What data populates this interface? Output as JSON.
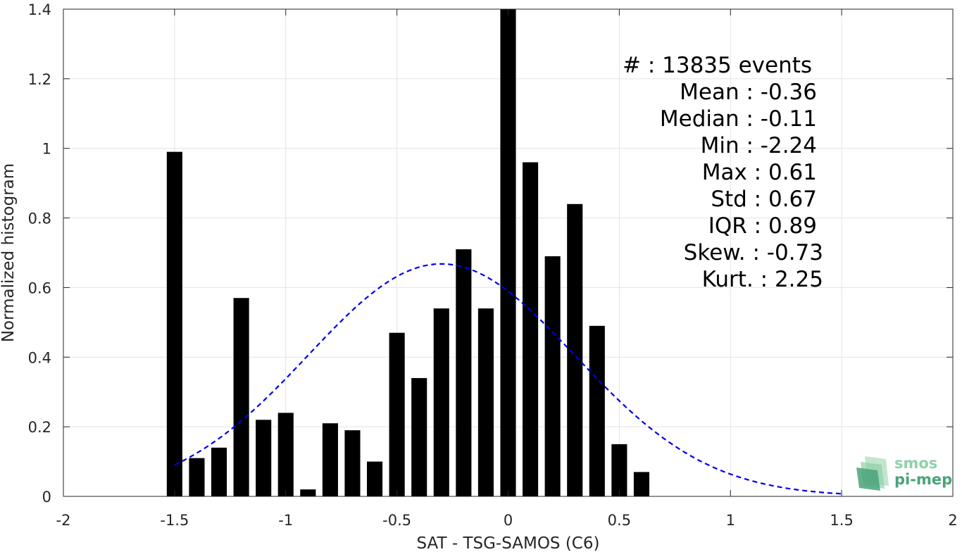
{
  "chart_data": {
    "type": "bar",
    "xlabel": "SAT - TSG-SAMOS (C6)",
    "ylabel": "Normalized histogram",
    "xlim": [
      -2,
      2
    ],
    "ylim": [
      0,
      1.4
    ],
    "xticks": [
      -2,
      -1.5,
      -1,
      -0.5,
      0,
      0.5,
      1,
      1.5,
      2
    ],
    "xtick_labels": [
      "-2",
      "-1.5",
      "-1",
      "-0.5",
      "0",
      "0.5",
      "1",
      "1.5",
      "2"
    ],
    "yticks": [
      0,
      0.2,
      0.4,
      0.6,
      0.8,
      1,
      1.2,
      1.4
    ],
    "ytick_labels": [
      "0",
      "0.2",
      "0.4",
      "0.6",
      "0.8",
      "1",
      "1.2",
      "1.4"
    ],
    "grid": true,
    "bar_color": "#000000",
    "bins": [
      -1.5,
      -1.4,
      -1.3,
      -1.2,
      -1.1,
      -1.0,
      -0.9,
      -0.8,
      -0.7,
      -0.6,
      -0.5,
      -0.4,
      -0.3,
      -0.2,
      -0.1,
      0.0,
      0.1,
      0.2,
      0.3,
      0.4,
      0.5,
      0.6
    ],
    "values": [
      0.99,
      0.11,
      0.14,
      0.57,
      0.22,
      0.24,
      0.02,
      0.21,
      0.19,
      0.1,
      0.47,
      0.34,
      0.54,
      0.71,
      0.54,
      1.4,
      0.96,
      0.69,
      0.84,
      0.49,
      0.15,
      0.07
    ],
    "fit_curve": {
      "style": "dashed",
      "color": "#0000ee",
      "mean": -0.3,
      "std": 0.6,
      "peak": 0.668,
      "x_range": [
        -1.5,
        1.5
      ]
    },
    "stats": [
      {
        "key": "count",
        "text": "#  : 13835 events"
      },
      {
        "key": "mean",
        "text": "Mean : -0.36"
      },
      {
        "key": "median",
        "text": "Median : -0.11"
      },
      {
        "key": "min",
        "text": "Min : -2.24"
      },
      {
        "key": "max",
        "text": "Max : 0.61"
      },
      {
        "key": "std",
        "text": "Std : 0.67"
      },
      {
        "key": "iqr",
        "text": "IQR : 0.89"
      },
      {
        "key": "skew",
        "text": "Skew. : -0.73"
      },
      {
        "key": "kurt",
        "text": "Kurt. : 2.25"
      }
    ]
  },
  "logo": {
    "line1": "smos",
    "line2": "pi-mep",
    "color_light": "#8fd0a8",
    "color_dark": "#4aa37a"
  }
}
